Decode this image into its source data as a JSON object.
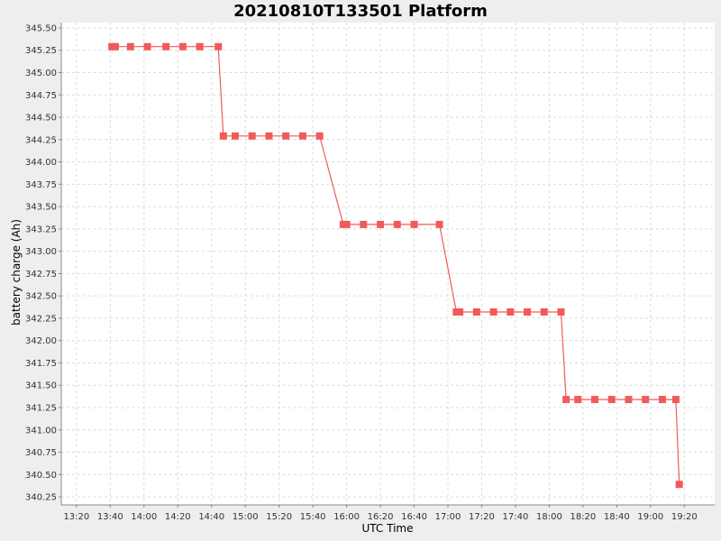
{
  "chart_data": {
    "type": "line",
    "title": "20210810T133501 Platform",
    "xlabel": "UTC Time",
    "ylabel": "battery charge (Ah)",
    "xlim": [
      "13:11",
      "19:38"
    ],
    "ylim": [
      340.16,
      345.56
    ],
    "x_ticks": [
      "13:20",
      "13:40",
      "14:00",
      "14:20",
      "14:40",
      "15:00",
      "15:20",
      "15:40",
      "16:00",
      "16:20",
      "16:40",
      "17:00",
      "17:20",
      "17:40",
      "18:00",
      "18:20",
      "18:40",
      "19:00",
      "19:20"
    ],
    "y_ticks": [
      "340.25",
      "340.50",
      "340.75",
      "341.00",
      "341.25",
      "341.50",
      "341.75",
      "342.00",
      "342.25",
      "342.50",
      "342.75",
      "343.00",
      "343.25",
      "343.50",
      "343.75",
      "344.00",
      "344.25",
      "344.50",
      "344.75",
      "345.00",
      "345.25",
      "345.50"
    ],
    "grid": true,
    "legend": "none",
    "colors": {
      "series": "#f05a5a",
      "background": "#eeeeee",
      "plot": "#ffffff",
      "grid": "#dcdcdc"
    },
    "series": [
      {
        "x": [
          "13:41",
          "13:43",
          "13:52",
          "14:02",
          "14:13",
          "14:23",
          "14:33",
          "14:44",
          "14:47",
          "14:54",
          "15:04",
          "15:14",
          "15:24",
          "15:34",
          "15:44",
          "15:58",
          "16:00",
          "16:10",
          "16:20",
          "16:30",
          "16:40",
          "16:55",
          "17:05",
          "17:07",
          "17:17",
          "17:27",
          "17:37",
          "17:47",
          "17:57",
          "18:07",
          "18:10",
          "18:17",
          "18:27",
          "18:37",
          "18:47",
          "18:57",
          "19:07",
          "19:15",
          "19:17"
        ],
        "y": [
          345.29,
          345.29,
          345.29,
          345.29,
          345.29,
          345.29,
          345.29,
          345.29,
          344.29,
          344.29,
          344.29,
          344.29,
          344.29,
          344.29,
          344.29,
          343.3,
          343.3,
          343.3,
          343.3,
          343.3,
          343.3,
          343.3,
          342.32,
          342.32,
          342.32,
          342.32,
          342.32,
          342.32,
          342.32,
          342.32,
          341.34,
          341.34,
          341.34,
          341.34,
          341.34,
          341.34,
          341.34,
          341.34,
          340.39
        ]
      }
    ]
  }
}
